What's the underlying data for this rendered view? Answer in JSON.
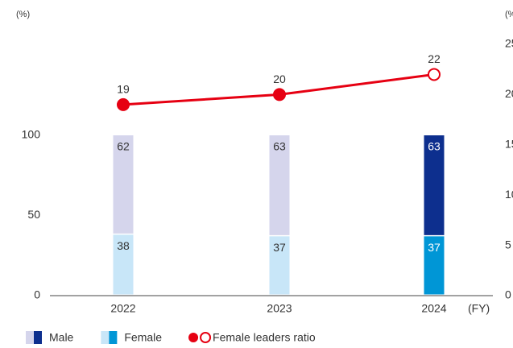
{
  "chart_data": {
    "type": "bar_line",
    "y_label": "(%)",
    "y2_label": "(%)",
    "x_label": "(FY)",
    "categories": [
      "2022",
      "2023",
      "2024"
    ],
    "ylim": [
      0,
      100
    ],
    "yticks": [
      0,
      50,
      100
    ],
    "y2lim": [
      0,
      25
    ],
    "y2ticks": [
      0,
      5,
      10,
      15,
      20,
      25
    ],
    "series": [
      {
        "name": "Female",
        "type": "bar",
        "colors": [
          "#c8e6f8",
          "#c8e6f8",
          "#0096d6"
        ],
        "values": [
          38,
          37,
          37
        ]
      },
      {
        "name": "Male",
        "type": "bar",
        "colors": [
          "#d5d5ec",
          "#d5d5ec",
          "#0d2f8e"
        ],
        "values": [
          62,
          63,
          63
        ]
      },
      {
        "name": "Female leaders ratio",
        "type": "line",
        "axis": "y2",
        "color": "#e60012",
        "marker_styles": [
          "filled",
          "filled",
          "hollow"
        ],
        "values": [
          19,
          20,
          22
        ]
      }
    ],
    "legend_order": [
      1,
      0,
      2
    ]
  }
}
